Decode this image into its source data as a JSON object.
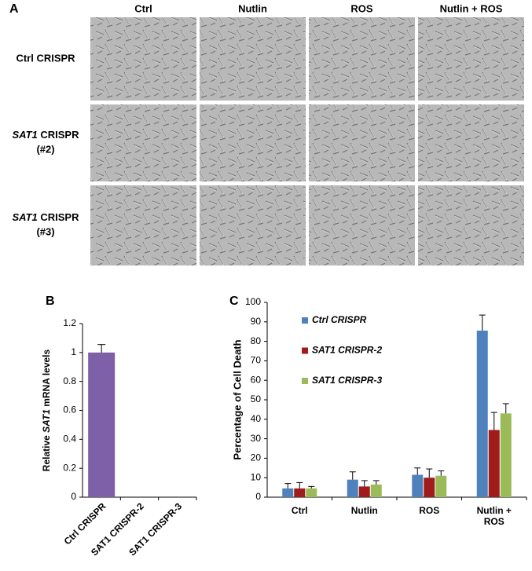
{
  "panels": {
    "a": "A",
    "b": "B",
    "c": "C"
  },
  "images": {
    "columns": [
      "Ctrl",
      "Nutlin",
      "ROS",
      "Nutlin + ROS"
    ],
    "rows": [
      {
        "text": "Ctrl CRISPR"
      },
      {
        "gene": "SAT1",
        "text": " CRISPR",
        "clone": "(#2)"
      },
      {
        "gene": "SAT1",
        "text": " CRISPR",
        "clone": "(#3)"
      }
    ]
  },
  "chart_data": [
    {
      "type": "bar",
      "y_label": {
        "before": "Relative ",
        "gene": "SAT1",
        "after": " mRNA levels"
      },
      "categories": [
        "Ctrl CRISPR",
        "SAT1 CRISPR-2",
        "SAT1 CRISPR-3"
      ],
      "values": [
        1,
        0,
        0
      ],
      "errors": [
        0.055,
        0,
        0
      ],
      "color": "#7d60a8",
      "ylim": [
        0,
        1.2
      ],
      "yticks": [
        0,
        0.2,
        0.4,
        0.6,
        0.8,
        1,
        1.2
      ]
    },
    {
      "type": "grouped_bar",
      "y_label": "Percentage of Cell Death",
      "categories": [
        "Ctrl",
        "Nutlin",
        "ROS",
        "Nutlin + ROS"
      ],
      "series": [
        {
          "name": "Ctrl CRISPR",
          "color": "#4f81bd",
          "values": [
            4.5,
            9,
            11.5,
            85.5
          ],
          "errors": [
            2.5,
            4,
            3.5,
            8
          ]
        },
        {
          "name": "SAT1 CRISPR-2",
          "color": "#a01c1c",
          "values": [
            4.5,
            5.5,
            10,
            34.5
          ],
          "errors": [
            3,
            3,
            4.5,
            9
          ]
        },
        {
          "name": "SAT1 CRISPR-3",
          "color": "#9bbb59",
          "values": [
            4.5,
            6.5,
            11,
            43
          ],
          "errors": [
            1,
            2,
            2.5,
            5
          ]
        }
      ],
      "ylim": [
        0,
        100
      ],
      "yticks": [
        0,
        10,
        20,
        30,
        40,
        50,
        60,
        70,
        80,
        90,
        100
      ]
    }
  ]
}
